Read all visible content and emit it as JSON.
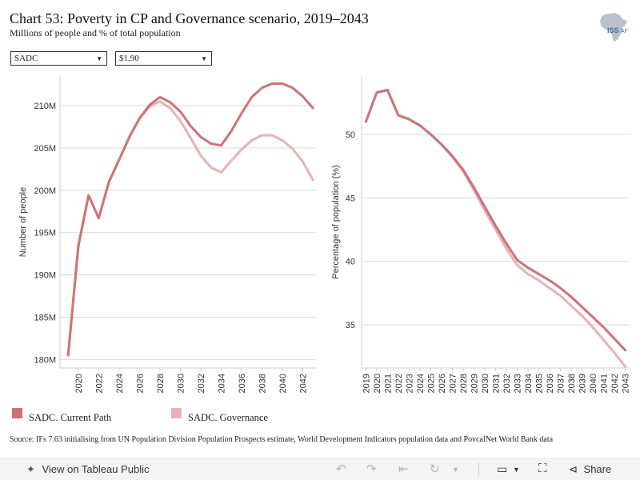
{
  "header": {
    "title": "Chart 53: Poverty in CP and Governance scenario, 2019–2043",
    "subtitle": "Millions of people and % of total population",
    "logo_text": "ISS",
    "logo_suffix": "AF"
  },
  "filters": {
    "region": "SADC",
    "poverty_line": "$1.90"
  },
  "colors": {
    "current_path": "#cd7277",
    "governance": "#e7b1b4",
    "grid": "#d9d9d9"
  },
  "legend": {
    "current_path": "SADC. Current Path",
    "governance": "SADC. Governance"
  },
  "source": "Source: IFs 7.63 initialising from UN Population Division Population Prospects estimate, World Development Indicators population data and PovcalNet World Bank data",
  "toolbar": {
    "view_label": "View on Tableau Public",
    "share_label": "Share",
    "icons": [
      "tableau-icon",
      "undo-icon",
      "redo-icon",
      "revert-icon",
      "refresh-icon",
      "download-icon",
      "fullscreen-icon",
      "share-icon"
    ]
  },
  "chart_data": [
    {
      "type": "line",
      "ylabel": "Number of people",
      "ylim": [
        179,
        213.5
      ],
      "yticks": [
        180,
        185,
        190,
        195,
        200,
        205,
        210
      ],
      "ytick_labels": [
        "180M",
        "185M",
        "190M",
        "195M",
        "200M",
        "205M",
        "210M"
      ],
      "xlim": [
        2018.2,
        2043.3
      ],
      "xticks": [
        2020,
        2022,
        2024,
        2026,
        2028,
        2030,
        2032,
        2034,
        2036,
        2038,
        2040,
        2042
      ],
      "x": [
        2019,
        2020,
        2021,
        2022,
        2023,
        2024,
        2025,
        2026,
        2027,
        2028,
        2029,
        2030,
        2031,
        2032,
        2033,
        2034,
        2035,
        2036,
        2037,
        2038,
        2039,
        2040,
        2041,
        2042,
        2043
      ],
      "series": [
        {
          "name": "SADC. Current Path",
          "key": "current_path",
          "values": [
            180.5,
            193.4,
            199.4,
            196.7,
            201.0,
            203.6,
            206.3,
            208.5,
            210.1,
            211.0,
            210.4,
            209.3,
            207.6,
            206.3,
            205.5,
            205.3,
            207.0,
            209.1,
            211.0,
            212.1,
            212.6,
            212.6,
            212.1,
            211.1,
            209.7
          ]
        },
        {
          "name": "SADC. Governance",
          "key": "governance",
          "values": [
            180.5,
            193.4,
            199.4,
            196.7,
            201.0,
            203.6,
            206.3,
            208.5,
            209.9,
            210.5,
            209.7,
            208.2,
            206.2,
            204.1,
            202.7,
            202.1,
            203.5,
            204.8,
            205.9,
            206.5,
            206.5,
            205.9,
            204.9,
            203.4,
            201.2
          ]
        }
      ]
    },
    {
      "type": "line",
      "ylabel": "Percentage of population (%)",
      "ylim": [
        31.6,
        54.6
      ],
      "yticks": [
        35,
        40,
        45,
        50
      ],
      "ytick_labels": [
        "35",
        "40",
        "45",
        "50"
      ],
      "xlim": [
        2018.6,
        2043.4
      ],
      "xticks": [
        2019,
        2020,
        2021,
        2022,
        2023,
        2024,
        2025,
        2026,
        2027,
        2028,
        2029,
        2030,
        2031,
        2032,
        2033,
        2034,
        2035,
        2036,
        2037,
        2038,
        2039,
        2040,
        2041,
        2042,
        2043
      ],
      "x": [
        2019,
        2020,
        2021,
        2022,
        2023,
        2024,
        2025,
        2026,
        2027,
        2028,
        2029,
        2030,
        2031,
        2032,
        2033,
        2034,
        2035,
        2036,
        2037,
        2038,
        2039,
        2040,
        2041,
        2042,
        2043
      ],
      "series": [
        {
          "name": "SADC. Current Path",
          "key": "current_path",
          "values": [
            51.0,
            53.3,
            53.5,
            51.5,
            51.2,
            50.7,
            50.0,
            49.2,
            48.3,
            47.2,
            45.8,
            44.3,
            42.8,
            41.4,
            40.1,
            39.5,
            39.0,
            38.5,
            37.9,
            37.2,
            36.4,
            35.6,
            34.8,
            33.9,
            33.0
          ],
          "note": "last value is 2043"
        },
        {
          "name": "SADC. Governance",
          "key": "governance",
          "values": [
            51.0,
            53.3,
            53.5,
            51.5,
            51.2,
            50.7,
            50.0,
            49.2,
            48.2,
            47.1,
            45.6,
            44.0,
            42.5,
            41.0,
            39.7,
            39.0,
            38.5,
            37.9,
            37.3,
            36.5,
            35.7,
            34.8,
            33.8,
            32.8,
            31.7
          ]
        }
      ]
    }
  ]
}
